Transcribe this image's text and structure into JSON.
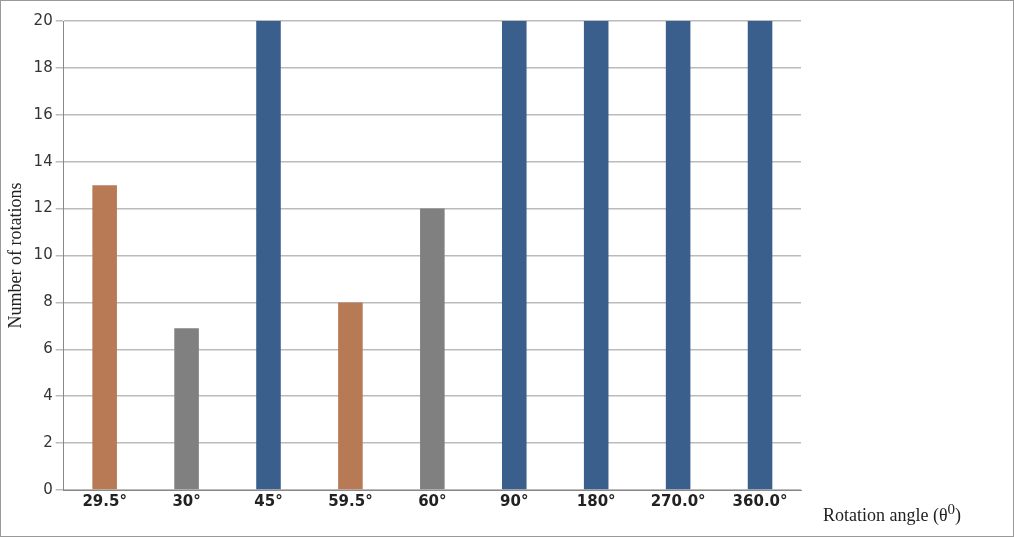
{
  "chart_data": {
    "type": "bar",
    "xlabel": "Rotation angle (θ$^{0}$)",
    "ylabel": "Number of rotations",
    "categories": [
      "29.5°",
      "30°",
      "45°",
      "59.5°",
      "60°",
      "90°",
      "180°",
      "270.0°",
      "360.0°"
    ],
    "values": [
      13,
      6.9,
      20,
      8,
      12,
      20,
      20,
      20,
      20
    ],
    "colors": [
      "#b87a54",
      "#808080",
      "#3b5f8c",
      "#b87a54",
      "#808080",
      "#3b5f8c",
      "#3b5f8c",
      "#3b5f8c",
      "#3b5f8c"
    ],
    "ylim": [
      0,
      20
    ],
    "yticks": [
      0,
      2,
      4,
      6,
      8,
      10,
      12,
      14,
      16,
      18,
      20
    ],
    "grid": "y"
  }
}
